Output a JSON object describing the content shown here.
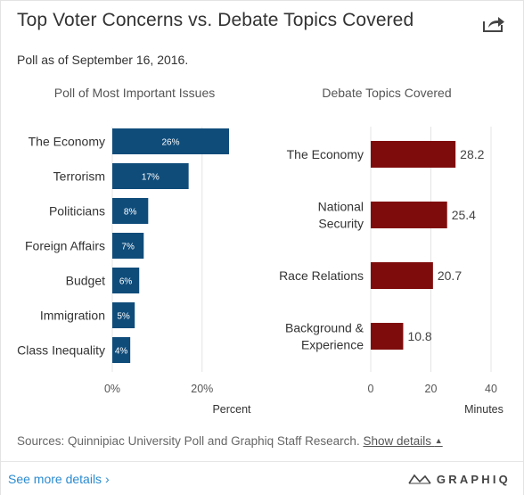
{
  "header": {
    "title": "Top Voter Concerns vs. Debate Topics Covered",
    "subtitle": "Poll as of September 16, 2016.",
    "share_icon": "share-icon"
  },
  "chart_data": [
    {
      "type": "bar",
      "orientation": "horizontal",
      "title": "Poll of Most Important Issues",
      "categories": [
        "The Economy",
        "Terrorism",
        "Politicians",
        "Foreign Affairs",
        "Budget",
        "Immigration",
        "Class Inequality"
      ],
      "values": [
        26,
        17,
        8,
        7,
        6,
        5,
        4
      ],
      "data_labels": [
        "26%",
        "17%",
        "8%",
        "7%",
        "6%",
        "5%",
        "4%"
      ],
      "xlabel": "Percent",
      "xlim": [
        0,
        26
      ],
      "ticks": [
        0,
        20
      ],
      "tick_labels": [
        "0%",
        "20%"
      ],
      "color": "#0f4c7a",
      "grid": true
    },
    {
      "type": "bar",
      "orientation": "horizontal",
      "title": "Debate Topics Covered",
      "categories": [
        [
          "The Economy"
        ],
        [
          "National",
          "Security"
        ],
        [
          "Race Relations"
        ],
        [
          "Background &",
          "Experience"
        ]
      ],
      "values": [
        28.2,
        25.4,
        20.7,
        10.8
      ],
      "data_labels": [
        "28.2",
        "25.4",
        "20.7",
        "10.8"
      ],
      "xlabel": "Minutes",
      "xlim": [
        0,
        40
      ],
      "ticks": [
        0,
        20,
        40
      ],
      "tick_labels": [
        "0",
        "20",
        "40"
      ],
      "color": "#7f0c0c",
      "grid": true
    }
  ],
  "sources": {
    "text": "Sources: Quinnipiac University Poll and Graphiq Staff Research.",
    "show_details": "Show details"
  },
  "footer": {
    "see_more": "See more details ›",
    "brand": "GRAPHIQ"
  }
}
